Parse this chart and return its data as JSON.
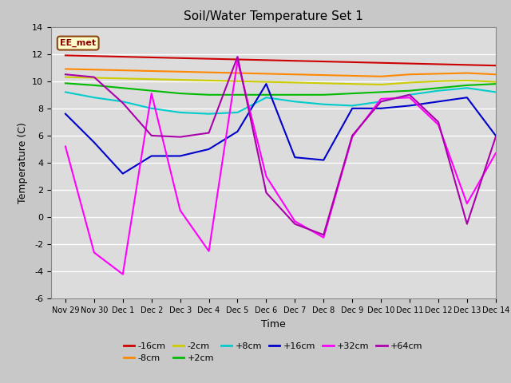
{
  "title": "Soil/Water Temperature Set 1",
  "xlabel": "Time",
  "ylabel": "Temperature (C)",
  "ylim": [
    -6,
    14
  ],
  "xlim": [
    0,
    15
  ],
  "background_color": "#c8c8c8",
  "plot_bg_color": "#dcdcdc",
  "annotation_text": "EE_met",
  "annotation_bg": "#ffffcc",
  "annotation_border": "#8b4513",
  "xtick_labels": [
    "Nov 29",
    "Nov 30",
    "Dec 1",
    "Dec 2",
    "Dec 3",
    "Dec 4",
    "Dec 5",
    "Dec 6",
    "Dec 7",
    "Dec 8",
    "Dec 9",
    "Dec 10",
    "Dec 11",
    "Dec 12",
    "Dec 13",
    "Dec 14"
  ],
  "ytick_vals": [
    -6,
    -4,
    -2,
    0,
    2,
    4,
    6,
    8,
    10,
    12,
    14
  ],
  "series": {
    "-16cm": {
      "color": "#cc0000",
      "values": [
        11.9,
        11.85,
        11.8,
        11.75,
        11.7,
        11.65,
        11.6,
        11.55,
        11.5,
        11.45,
        11.4,
        11.35,
        11.3,
        11.25,
        11.2,
        11.15
      ]
    },
    "-8cm": {
      "color": "#ff8800",
      "values": [
        10.9,
        10.85,
        10.8,
        10.75,
        10.7,
        10.65,
        10.6,
        10.55,
        10.5,
        10.45,
        10.4,
        10.35,
        10.5,
        10.55,
        10.6,
        10.5
      ]
    },
    "-2cm": {
      "color": "#cccc00",
      "values": [
        10.3,
        10.25,
        10.2,
        10.15,
        10.1,
        10.05,
        10.0,
        9.95,
        9.9,
        9.85,
        9.8,
        9.75,
        9.9,
        10.0,
        10.05,
        9.95
      ]
    },
    "+2cm": {
      "color": "#00bb00",
      "values": [
        9.85,
        9.7,
        9.5,
        9.3,
        9.1,
        9.0,
        9.0,
        9.0,
        9.0,
        9.0,
        9.1,
        9.2,
        9.3,
        9.5,
        9.7,
        9.8
      ]
    },
    "+8cm": {
      "color": "#00cccc",
      "values": [
        9.2,
        8.8,
        8.5,
        8.0,
        7.7,
        7.6,
        7.7,
        8.8,
        8.5,
        8.3,
        8.2,
        8.5,
        9.0,
        9.3,
        9.5,
        9.2
      ]
    },
    "+16cm": {
      "color": "#0000cc",
      "values": [
        7.6,
        5.5,
        3.2,
        4.5,
        4.5,
        5.0,
        6.3,
        9.8,
        4.4,
        4.2,
        8.0,
        8.0,
        8.2,
        8.5,
        8.8,
        6.0
      ]
    },
    "+32cm": {
      "color": "#ff00ff",
      "values": [
        5.2,
        -2.6,
        -4.2,
        9.1,
        0.5,
        -2.5,
        11.5,
        3.0,
        -0.3,
        -1.5,
        5.9,
        8.7,
        8.8,
        6.8,
        1.0,
        4.7
      ]
    },
    "+64cm": {
      "color": "#aa00aa",
      "values": [
        10.5,
        10.3,
        8.4,
        6.0,
        5.9,
        6.2,
        11.8,
        1.8,
        -0.5,
        -1.3,
        6.0,
        8.5,
        9.0,
        7.0,
        -0.5,
        5.9
      ]
    }
  }
}
